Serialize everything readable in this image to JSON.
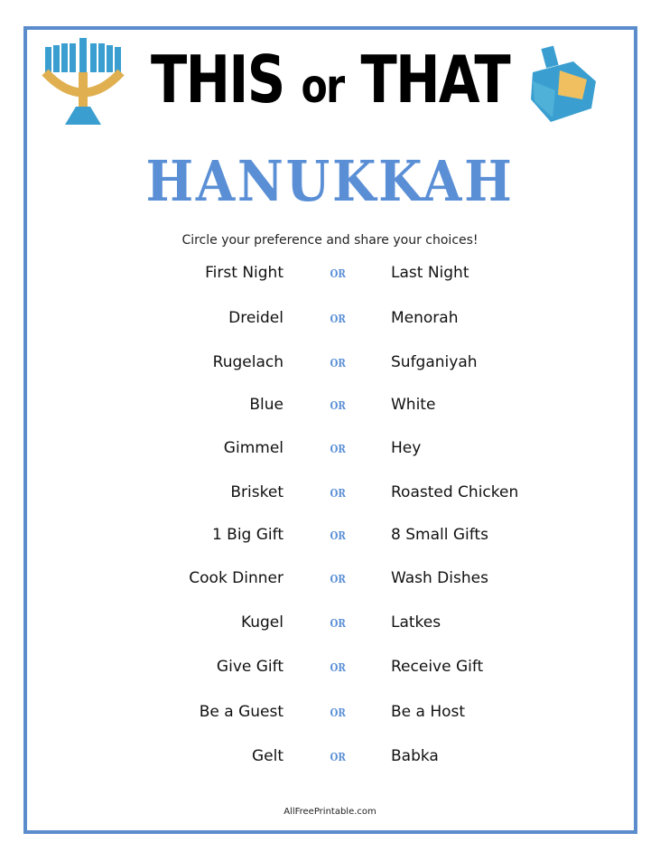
{
  "header": {
    "title_this": "THIS",
    "title_or": "or",
    "title_that": "THAT",
    "holiday": "HANUKKAH",
    "instructions": "Circle your preference and share your choices!"
  },
  "separator": "OR",
  "choices": [
    {
      "this": "First Night",
      "that": "Last Night"
    },
    {
      "this": "Dreidel",
      "that": "Menorah"
    },
    {
      "this": "Rugelach",
      "that": "Sufganiyah"
    },
    {
      "this": "Blue",
      "that": "White"
    },
    {
      "this": "Gimmel",
      "that": "Hey"
    },
    {
      "this": "Brisket",
      "that": "Roasted Chicken"
    },
    {
      "this": "1 Big Gift",
      "that": "8 Small Gifts"
    },
    {
      "this": "Cook Dinner",
      "that": "Wash Dishes"
    },
    {
      "this": "Kugel",
      "that": "Latkes"
    },
    {
      "this": "Give Gift",
      "that": "Receive Gift"
    },
    {
      "this": "Be a Guest",
      "that": "Be a Host"
    },
    {
      "this": "Gelt",
      "that": "Babka"
    }
  ],
  "footer": "AllFreePrintable.com",
  "colors": {
    "border": "#5b8dcc",
    "accent": "#5a8fd6"
  },
  "icons": [
    "menorah-icon",
    "dreidel-icon"
  ]
}
